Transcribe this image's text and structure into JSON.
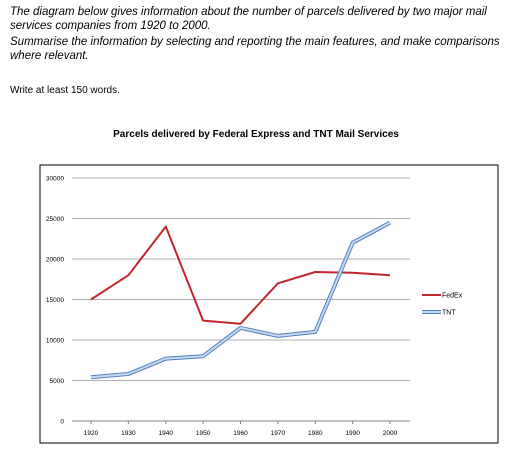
{
  "prompt": {
    "line1": "The diagram below gives information about the number of parcels delivered by two major mail services companies from 1920 to 2000.",
    "line2": "Summarise the information by selecting and reporting the main features, and make comparisons where relevant."
  },
  "instruction": "Write at least 150 words.",
  "chart_data": {
    "type": "line",
    "title": "Parcels delivered by Federal Express and TNT Mail Services",
    "xlabel": "",
    "ylabel": "",
    "x": [
      "1920",
      "1930",
      "1940",
      "1950",
      "1960",
      "1970",
      "1980",
      "1990",
      "2000"
    ],
    "yticks": [
      "0",
      "5000",
      "10000",
      "15000",
      "20000",
      "25000",
      "30000"
    ],
    "ylim": [
      0,
      30000
    ],
    "grid": true,
    "legend_position": "right",
    "series": [
      {
        "name": "FedEx",
        "color": "#c0272d",
        "values": [
          15000,
          18000,
          24000,
          12400,
          12000,
          17000,
          18400,
          18300,
          18000
        ]
      },
      {
        "name": "TNT",
        "color": "#8db4e2",
        "values": [
          5400,
          5800,
          7700,
          8000,
          11500,
          10500,
          11000,
          22000,
          24500
        ]
      }
    ]
  }
}
